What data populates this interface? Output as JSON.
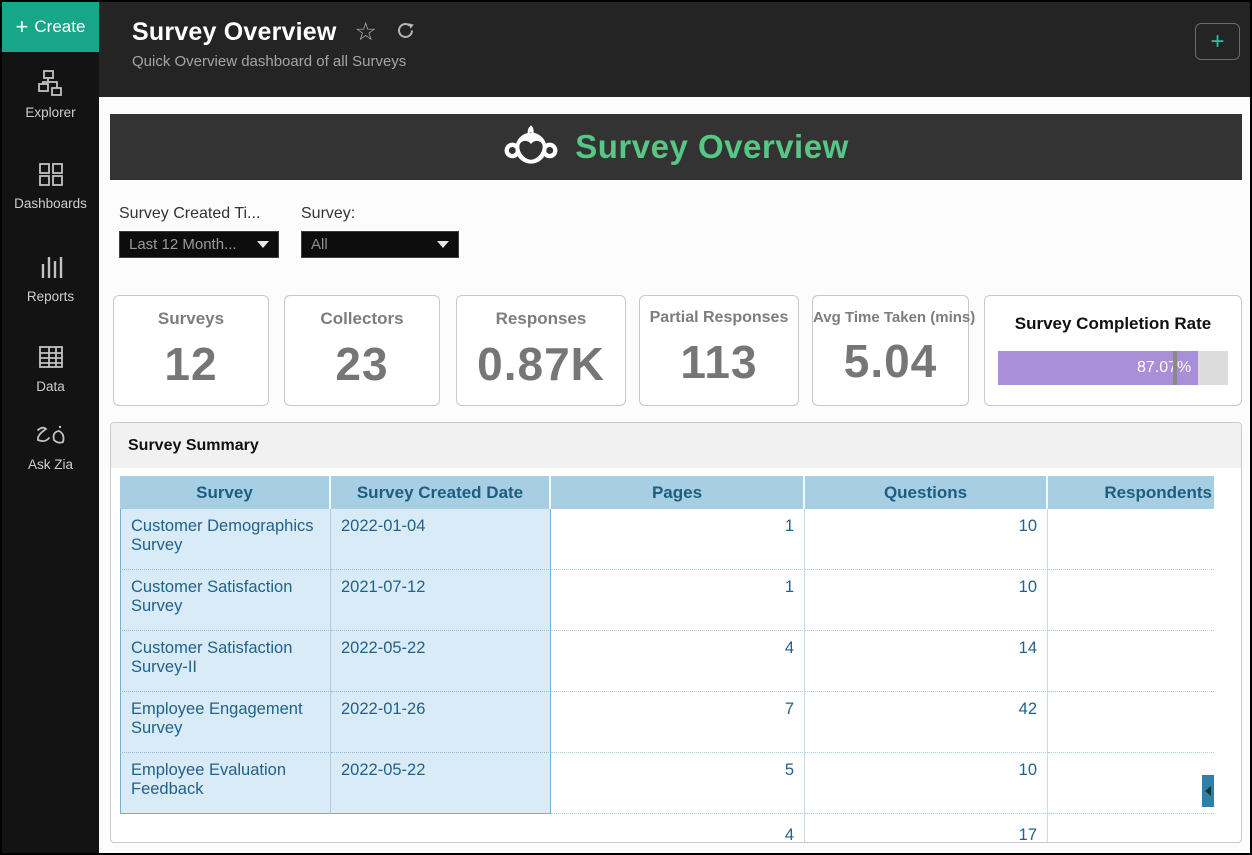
{
  "colors": {
    "accent_teal": "#17a689",
    "banner_green": "#57c785",
    "completion_purple": "#a98fd8",
    "table_header_blue": "#a7cee3",
    "frozen_cell_blue": "#d9ebf6",
    "scroll_thumb_blue": "#2e7fab"
  },
  "sidebar": {
    "create_label": "Create",
    "items": [
      {
        "label": "Explorer",
        "icon": "explorer-icon"
      },
      {
        "label": "Dashboards",
        "icon": "dashboards-icon"
      },
      {
        "label": "Reports",
        "icon": "reports-icon"
      },
      {
        "label": "Data",
        "icon": "data-icon"
      },
      {
        "label": "Ask Zia",
        "icon": "ask-zia-icon"
      }
    ]
  },
  "header": {
    "title": "Survey Overview",
    "subtitle": "Quick Overview dashboard of all Surveys",
    "star_icon": "☆",
    "add_button_label": "+"
  },
  "banner": {
    "title": "Survey Overview",
    "logo": "surveymonkey-logo"
  },
  "filters": [
    {
      "label": "Survey Created Ti...",
      "value": "Last 12 Month..."
    },
    {
      "label": "Survey:",
      "value": "All"
    }
  ],
  "kpis": [
    {
      "title": "Surveys",
      "value": "12"
    },
    {
      "title": "Collectors",
      "value": "23"
    },
    {
      "title": "Responses",
      "value": "0.87K"
    },
    {
      "title": "Partial Responses",
      "value": "113"
    },
    {
      "title": "Avg Time Taken (mins)",
      "value": "5.04"
    }
  ],
  "completion": {
    "title": "Survey Completion Rate",
    "label": "87.07%",
    "percent": 87.07,
    "marker_percent": 76
  },
  "summary_table": {
    "title": "Survey Summary",
    "columns": [
      "Survey",
      "Survey Created Date",
      "Pages",
      "Questions",
      "Respondents"
    ],
    "rows": [
      {
        "survey": "Customer Demographics Survey",
        "created": "2022-01-04",
        "pages": "1",
        "questions": "10",
        "respondents": ""
      },
      {
        "survey": "Customer Satisfaction Survey",
        "created": "2021-07-12",
        "pages": "1",
        "questions": "10",
        "respondents": ""
      },
      {
        "survey": "Customer Satisfaction Survey-II",
        "created": "2022-05-22",
        "pages": "4",
        "questions": "14",
        "respondents": ""
      },
      {
        "survey": "Employee Engagement Survey",
        "created": "2022-01-26",
        "pages": "7",
        "questions": "42",
        "respondents": ""
      },
      {
        "survey": "Employee Evaluation Feedback",
        "created": "2022-05-22",
        "pages": "5",
        "questions": "10",
        "respondents": ""
      }
    ],
    "partial_row": {
      "pages": "4",
      "questions": "17"
    }
  }
}
